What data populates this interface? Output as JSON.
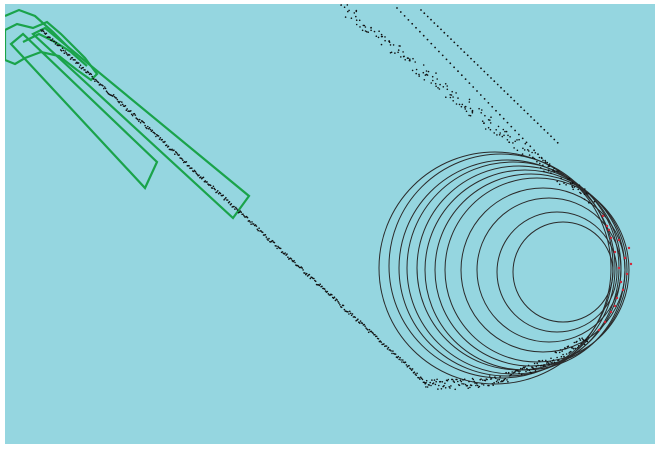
{
  "scene": {
    "background_color": "#95d6e0",
    "frame_color": "#ffffff",
    "wedge_color": "#1aa34a",
    "circle_color": "#2a2a2a",
    "point_color": "#111111",
    "highlight_color": "#d1283a"
  },
  "elements": {
    "wedges": 3,
    "wedge_structure": "green-outline",
    "circles": 12,
    "particle_streams": [
      "main-diagonal-stream",
      "upper-arc-stream",
      "lower-return-stream"
    ],
    "highlight_points": "red-points-at-circle-edge"
  }
}
